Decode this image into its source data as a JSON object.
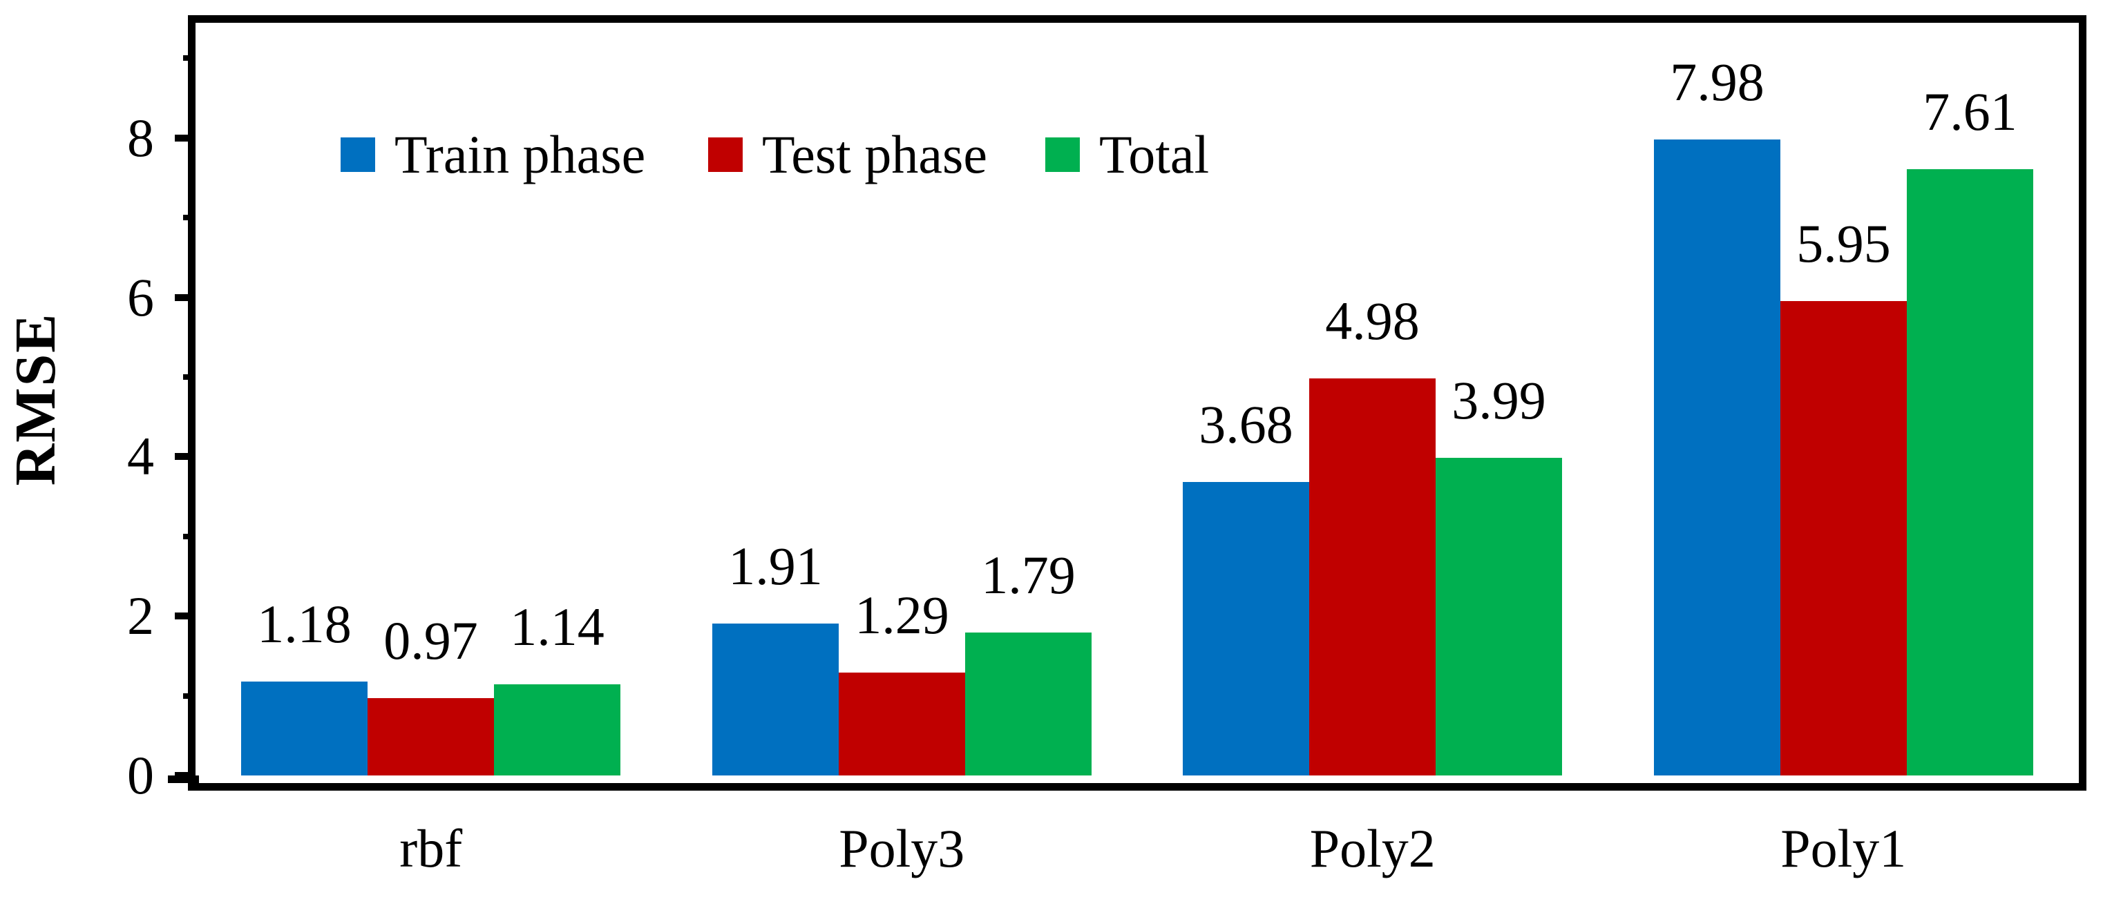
{
  "figure": {
    "background_color": "#ffffff",
    "axis_color": "#000000",
    "text_color": "#000000"
  },
  "chart_data": {
    "type": "bar",
    "title": "",
    "xlabel": "",
    "ylabel": "RMSE",
    "categories": [
      "rbf",
      "Poly3",
      "Poly2",
      "Poly1"
    ],
    "series": [
      {
        "name": "Train phase",
        "color": "#0070C0",
        "values": [
          1.18,
          1.91,
          3.68,
          7.98
        ]
      },
      {
        "name": "Test phase",
        "color": "#C00000",
        "values": [
          0.97,
          1.29,
          4.98,
          5.95
        ]
      },
      {
        "name": "Total",
        "color": "#00B050",
        "values": [
          1.14,
          1.79,
          3.99,
          7.61
        ]
      }
    ],
    "value_labels": [
      [
        "1.18",
        "1.91",
        "3.68",
        "7.98"
      ],
      [
        "0.97",
        "1.29",
        "4.98",
        "5.95"
      ],
      [
        "1.14",
        "1.79",
        "3.99",
        "7.61"
      ]
    ],
    "y_axis": {
      "min": 0,
      "max": 9.43,
      "major_ticks": [
        0,
        2,
        4,
        6,
        8
      ],
      "minor_ticks": [
        1,
        3,
        5,
        7,
        9
      ]
    },
    "grid": false,
    "legend_position": "top-inside-horizontal"
  }
}
